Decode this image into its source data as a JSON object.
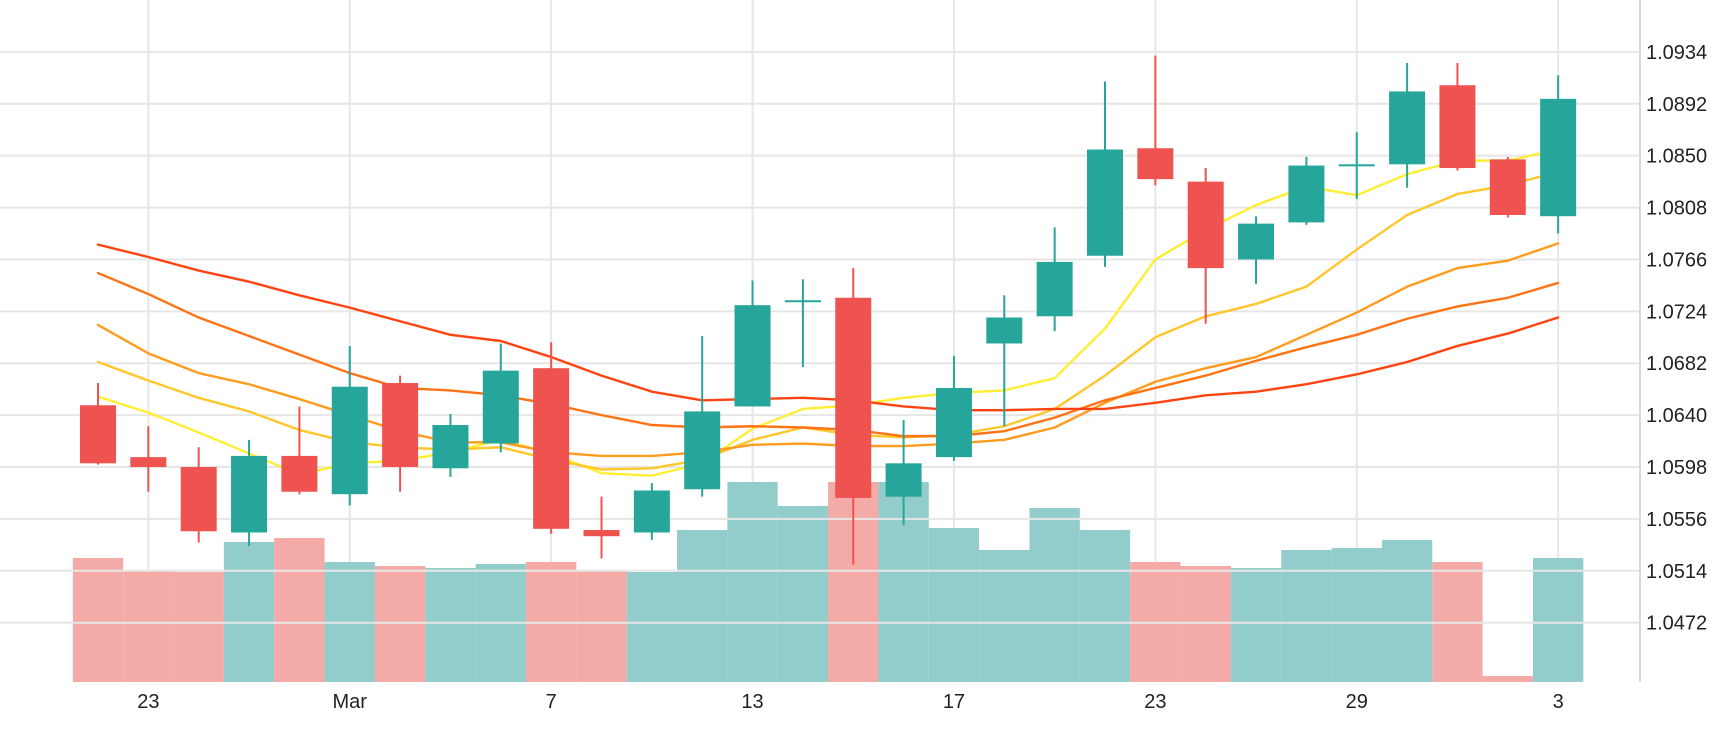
{
  "chart_data": {
    "type": "candlestick",
    "title": "",
    "xlabel": "",
    "ylabel": "",
    "ylim": [
      1.0424,
      1.0976
    ],
    "y_ticks": [
      "1.0934",
      "1.0892",
      "1.0850",
      "1.0808",
      "1.0766",
      "1.0724",
      "1.0682",
      "1.0640",
      "1.0598",
      "1.0556",
      "1.0514",
      "1.0472"
    ],
    "x_ticks": [
      {
        "label": "23",
        "index": 1
      },
      {
        "label": "Mar",
        "index": 5
      },
      {
        "label": "7",
        "index": 9
      },
      {
        "label": "13",
        "index": 13
      },
      {
        "label": "17",
        "index": 17
      },
      {
        "label": "23",
        "index": 21
      },
      {
        "label": "29",
        "index": 25
      },
      {
        "label": "3",
        "index": 29
      }
    ],
    "grid": true,
    "colors": {
      "up": "#26a69a",
      "down": "#ef5350",
      "up_volume": "#92cdcc",
      "down_volume": "#f4aaa7",
      "grid": "#e6e6e6"
    },
    "candles": [
      {
        "o": 1.0648,
        "h": 1.0666,
        "l": 1.06,
        "c": 1.0601
      },
      {
        "o": 1.0606,
        "h": 1.0631,
        "l": 1.0578,
        "c": 1.0598
      },
      {
        "o": 1.0598,
        "h": 1.0614,
        "l": 1.0537,
        "c": 1.0546
      },
      {
        "o": 1.0545,
        "h": 1.062,
        "l": 1.0534,
        "c": 1.0607
      },
      {
        "o": 1.0607,
        "h": 1.0647,
        "l": 1.0576,
        "c": 1.0578
      },
      {
        "o": 1.0576,
        "h": 1.0696,
        "l": 1.0567,
        "c": 1.0663
      },
      {
        "o": 1.0666,
        "h": 1.0672,
        "l": 1.0578,
        "c": 1.0598
      },
      {
        "o": 1.0597,
        "h": 1.0641,
        "l": 1.059,
        "c": 1.0632
      },
      {
        "o": 1.0617,
        "h": 1.0698,
        "l": 1.061,
        "c": 1.0676
      },
      {
        "o": 1.0678,
        "h": 1.0699,
        "l": 1.0544,
        "c": 1.0548
      },
      {
        "o": 1.0547,
        "h": 1.0574,
        "l": 1.0524,
        "c": 1.0542
      },
      {
        "o": 1.0545,
        "h": 1.0585,
        "l": 1.0539,
        "c": 1.0579
      },
      {
        "o": 1.058,
        "h": 1.0704,
        "l": 1.0574,
        "c": 1.0643
      },
      {
        "o": 1.0647,
        "h": 1.0749,
        "l": 1.0647,
        "c": 1.0729
      },
      {
        "o": 1.0732,
        "h": 1.075,
        "l": 1.0679,
        "c": 1.0733
      },
      {
        "o": 1.0735,
        "h": 1.0759,
        "l": 1.0519,
        "c": 1.0573
      },
      {
        "o": 1.0574,
        "h": 1.0636,
        "l": 1.0551,
        "c": 1.0601
      },
      {
        "o": 1.0606,
        "h": 1.0688,
        "l": 1.0603,
        "c": 1.0662
      },
      {
        "o": 1.0698,
        "h": 1.0737,
        "l": 1.0631,
        "c": 1.0719
      },
      {
        "o": 1.072,
        "h": 1.0792,
        "l": 1.0708,
        "c": 1.0764
      },
      {
        "o": 1.0769,
        "h": 1.091,
        "l": 1.076,
        "c": 1.0855
      },
      {
        "o": 1.0856,
        "h": 1.0931,
        "l": 1.0826,
        "c": 1.0831
      },
      {
        "o": 1.0829,
        "h": 1.084,
        "l": 1.0714,
        "c": 1.0759
      },
      {
        "o": 1.0766,
        "h": 1.0801,
        "l": 1.0746,
        "c": 1.0795
      },
      {
        "o": 1.0796,
        "h": 1.0849,
        "l": 1.0794,
        "c": 1.0842
      },
      {
        "o": 1.0842,
        "h": 1.0869,
        "l": 1.0815,
        "c": 1.0843
      },
      {
        "o": 1.0843,
        "h": 1.0925,
        "l": 1.0824,
        "c": 1.0902
      },
      {
        "o": 1.0907,
        "h": 1.0925,
        "l": 1.0838,
        "c": 1.084
      },
      {
        "o": 1.0847,
        "h": 1.0849,
        "l": 1.08,
        "c": 1.0802
      },
      {
        "o": 1.0801,
        "h": 1.0915,
        "l": 1.0787,
        "c": 1.0896
      }
    ],
    "volume_ylim": [
      0,
      1
    ],
    "volumes": [
      0.62,
      0.56,
      0.55,
      0.7,
      0.72,
      0.6,
      0.58,
      0.57,
      0.59,
      0.6,
      0.56,
      0.55,
      0.76,
      1.0,
      0.88,
      1.0,
      1.0,
      0.77,
      0.66,
      0.87,
      0.76,
      0.6,
      0.58,
      0.57,
      0.66,
      0.67,
      0.71,
      0.6,
      0.03,
      0.62
    ],
    "moving_averages": [
      {
        "color": "#ffee33",
        "values": [
          1.0655,
          1.0642,
          1.0626,
          1.0609,
          1.0592,
          1.0601,
          1.0603,
          1.061,
          1.062,
          1.0609,
          1.0593,
          1.0591,
          1.0601,
          1.0629,
          1.0645,
          1.0648,
          1.0654,
          1.0658,
          1.066,
          1.067,
          1.071,
          1.0766,
          1.079,
          1.081,
          1.0825,
          1.0818,
          1.0835,
          1.0846,
          1.0846,
          1.0855
        ]
      },
      {
        "color": "#ffc72b",
        "values": [
          1.0683,
          1.0668,
          1.0654,
          1.0643,
          1.0628,
          1.0618,
          1.0614,
          1.0612,
          1.0614,
          1.0604,
          1.0596,
          1.0597,
          1.0604,
          1.062,
          1.063,
          1.0624,
          1.0622,
          1.0624,
          1.0631,
          1.0645,
          1.0672,
          1.0703,
          1.072,
          1.073,
          1.0744,
          1.0774,
          1.0802,
          1.0819,
          1.0826,
          1.0837
        ]
      },
      {
        "color": "#ff9c1e",
        "values": [
          1.0713,
          1.069,
          1.0674,
          1.0665,
          1.0653,
          1.064,
          1.0627,
          1.0618,
          1.0618,
          1.061,
          1.0607,
          1.0607,
          1.061,
          1.0616,
          1.0617,
          1.0615,
          1.0615,
          1.0617,
          1.062,
          1.063,
          1.065,
          1.0667,
          1.0678,
          1.0687,
          1.0705,
          1.0723,
          1.0744,
          1.0759,
          1.0765,
          1.0779
        ]
      },
      {
        "color": "#ff7314",
        "values": [
          1.0755,
          1.0738,
          1.0719,
          1.0704,
          1.0689,
          1.0674,
          1.0662,
          1.066,
          1.0656,
          1.0649,
          1.064,
          1.0632,
          1.063,
          1.0631,
          1.063,
          1.0628,
          1.0623,
          1.0623,
          1.0627,
          1.0638,
          1.0652,
          1.0662,
          1.0672,
          1.0684,
          1.0695,
          1.0705,
          1.0718,
          1.0728,
          1.0735,
          1.0747
        ]
      },
      {
        "color": "#ff4411",
        "values": [
          1.0778,
          1.0768,
          1.0757,
          1.0748,
          1.0737,
          1.0727,
          1.0716,
          1.0705,
          1.07,
          1.0687,
          1.0672,
          1.0659,
          1.0652,
          1.0653,
          1.0654,
          1.0652,
          1.0647,
          1.0644,
          1.0644,
          1.0645,
          1.0645,
          1.065,
          1.0656,
          1.0659,
          1.0665,
          1.0673,
          1.0683,
          1.0696,
          1.0706,
          1.0719
        ]
      }
    ]
  }
}
